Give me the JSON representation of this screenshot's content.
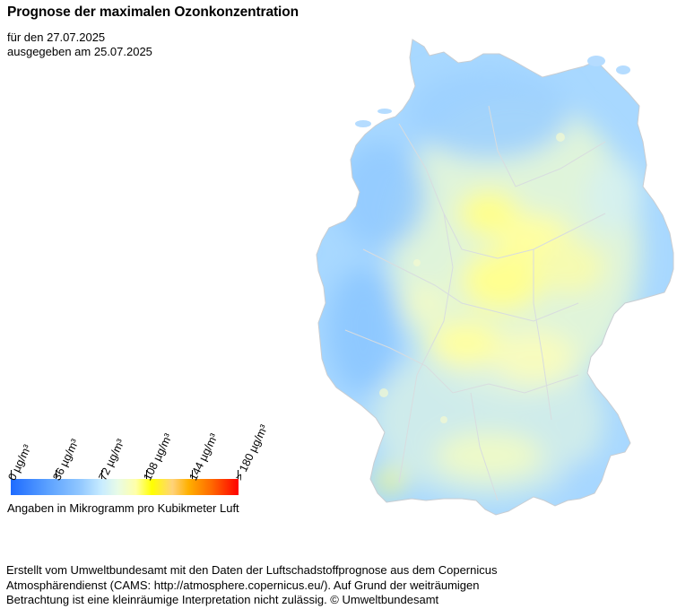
{
  "title": "Prognose der maximalen Ozonkonzentration",
  "forecast_date_line": "für den 27.07.2025",
  "issued_line": "ausgegeben am 25.07.2025",
  "legend": {
    "ticks": [
      "0  µg/m³",
      "36  µg/m³",
      "72  µg/m³",
      "108  µg/m³",
      "144  µg/m³",
      "> 180  µg/m³"
    ],
    "caption": "Angaben in Mikrogramm pro Kubikmeter Luft",
    "colors": [
      "#1e6bff",
      "#8fc6ff",
      "#e8fbe6",
      "#ffff00",
      "#ffb000",
      "#ff0000"
    ]
  },
  "map": {
    "region": "Deutschland",
    "dominant_colors": [
      "#9fd2ff",
      "#f2f8c8",
      "#ffff9a"
    ]
  },
  "credit_lines": [
    "Erstellt vom Umweltbundesamt mit den Daten der Luftschadstoffprognose aus dem Copernicus",
    "Atmosphärendienst (CAMS: http://atmosphere.copernicus.eu/). Auf Grund der weiträumigen",
    "Betrachtung ist eine kleinräumige Interpretation nicht zulässig. © Umweltbundesamt"
  ]
}
